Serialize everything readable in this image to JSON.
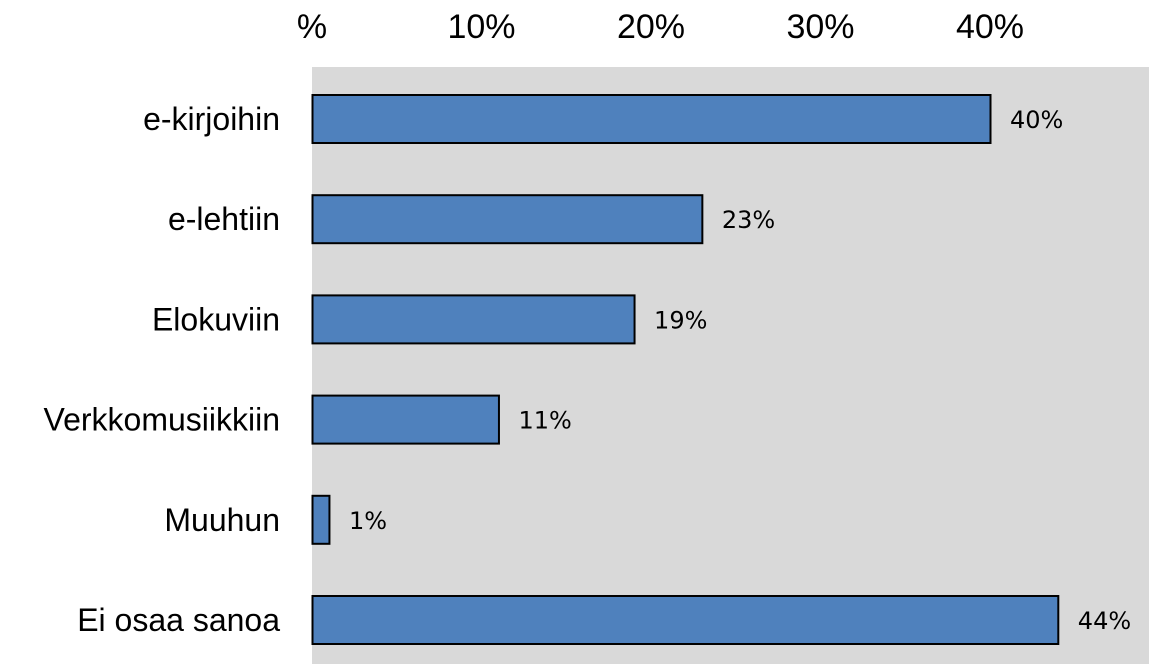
{
  "chart_data": {
    "type": "bar",
    "orientation": "horizontal",
    "categories": [
      "e-kirjoihin",
      "e-lehtiin",
      "Elokuviin",
      "Verkkomusiikkiin",
      "Muuhun",
      "Ei osaa sanoa"
    ],
    "values": [
      40,
      23,
      19,
      11,
      1,
      44
    ],
    "value_labels": [
      "40%",
      "23%",
      "19%",
      "11%",
      "1%",
      "44%"
    ],
    "x_ticks": [
      0,
      10,
      20,
      30,
      40
    ],
    "x_tick_labels": [
      "%",
      "10%",
      "20%",
      "30%",
      "40%"
    ],
    "xlim": [
      0,
      49
    ],
    "x_axis_position": "top",
    "grid": false,
    "bar_color": "#4f81bd",
    "plot_background": "#d9d9d9",
    "bar_border_color": "#000000"
  }
}
